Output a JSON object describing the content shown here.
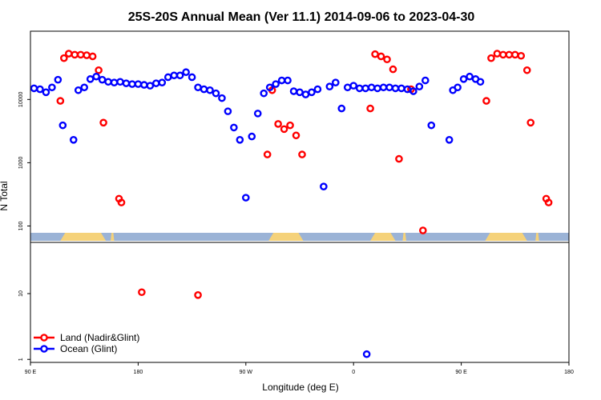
{
  "chart_data": {
    "type": "scatter",
    "title": "25S-20S Annual Mean (Ver 11.1)   2014-09-06 to 2023-04-30",
    "xlabel": "Longitude (deg E)",
    "ylabel": "N Total",
    "xlim": [
      90,
      540
    ],
    "x_ticks": [
      {
        "value": 90,
        "label": "90 E"
      },
      {
        "value": 180,
        "label": "180"
      },
      {
        "value": 270,
        "label": "90 W"
      },
      {
        "value": 360,
        "label": "0"
      },
      {
        "value": 450,
        "label": "90 E"
      },
      {
        "value": 540,
        "label": "180"
      }
    ],
    "y_scale": "log",
    "upper_ylim": [
      55,
      120000
    ],
    "lower_ylim": [
      0.9,
      60
    ],
    "upper_y_ticks": [
      {
        "value": 100,
        "label": "100"
      },
      {
        "value": 1000,
        "label": "1000"
      },
      {
        "value": 10000,
        "label": "10000"
      }
    ],
    "lower_y_ticks": [
      {
        "value": 1,
        "label": "1"
      },
      {
        "value": 10,
        "label": "10"
      }
    ],
    "land_mask": {
      "ocean_color": "#9bb3d6",
      "land_color": "#f5d27a",
      "land_segments": [
        [
          115,
          153
        ],
        [
          157,
          160
        ],
        [
          289,
          318
        ],
        [
          374,
          395
        ],
        [
          401,
          404
        ],
        [
          470,
          505
        ],
        [
          512,
          515
        ]
      ]
    },
    "legend_position": "bottom-left",
    "series": [
      {
        "name": "Land (Nadir&Glint)",
        "color": "#ff0000",
        "upper": [
          [
            115,
            9500
          ],
          [
            118,
            45000
          ],
          [
            122,
            53000
          ],
          [
            127,
            51000
          ],
          [
            132,
            51000
          ],
          [
            137,
            50000
          ],
          [
            142,
            48000
          ],
          [
            147,
            29000
          ],
          [
            151,
            4300
          ],
          [
            164,
            270
          ],
          [
            166,
            235
          ],
          [
            292,
            14000
          ],
          [
            297,
            4100
          ],
          [
            302,
            3400
          ],
          [
            307,
            3900
          ],
          [
            312,
            2700
          ],
          [
            317,
            1350
          ],
          [
            288,
            1350
          ],
          [
            374,
            7200
          ],
          [
            378,
            52000
          ],
          [
            383,
            48000
          ],
          [
            388,
            43000
          ],
          [
            393,
            30000
          ],
          [
            398,
            1150
          ],
          [
            408,
            14500
          ],
          [
            418,
            85
          ],
          [
            471,
            9500
          ],
          [
            475,
            45000
          ],
          [
            480,
            53000
          ],
          [
            485,
            51000
          ],
          [
            490,
            51000
          ],
          [
            495,
            51000
          ],
          [
            500,
            49000
          ],
          [
            505,
            29000
          ],
          [
            508,
            4300
          ],
          [
            521,
            270
          ],
          [
            523,
            235
          ]
        ],
        "lower": [
          [
            183,
            10.5
          ],
          [
            230,
            9.5
          ]
        ]
      },
      {
        "name": "Ocean (Glint)",
        "color": "#0000ff",
        "upper": [
          [
            93,
            15000
          ],
          [
            98,
            14500
          ],
          [
            103,
            13000
          ],
          [
            108,
            15500
          ],
          [
            113,
            20500
          ],
          [
            117,
            3900
          ],
          [
            126,
            2300
          ],
          [
            130,
            14000
          ],
          [
            135,
            15500
          ],
          [
            140,
            21000
          ],
          [
            145,
            23000
          ],
          [
            150,
            20500
          ],
          [
            155,
            19000
          ],
          [
            160,
            18500
          ],
          [
            165,
            19000
          ],
          [
            170,
            18000
          ],
          [
            175,
            17500
          ],
          [
            180,
            17500
          ],
          [
            185,
            17000
          ],
          [
            190,
            16500
          ],
          [
            195,
            18000
          ],
          [
            200,
            18500
          ],
          [
            205,
            22500
          ],
          [
            210,
            24000
          ],
          [
            215,
            24000
          ],
          [
            220,
            27000
          ],
          [
            225,
            22500
          ],
          [
            230,
            15500
          ],
          [
            235,
            14500
          ],
          [
            240,
            14000
          ],
          [
            245,
            12500
          ],
          [
            250,
            10500
          ],
          [
            255,
            6500
          ],
          [
            260,
            3600
          ],
          [
            265,
            2300
          ],
          [
            270,
            280
          ],
          [
            275,
            2600
          ],
          [
            280,
            6000
          ],
          [
            285,
            12500
          ],
          [
            290,
            15500
          ],
          [
            295,
            17500
          ],
          [
            300,
            20000
          ],
          [
            305,
            20000
          ],
          [
            310,
            13500
          ],
          [
            315,
            13000
          ],
          [
            320,
            12000
          ],
          [
            325,
            13000
          ],
          [
            330,
            14500
          ],
          [
            335,
            420
          ],
          [
            340,
            16000
          ],
          [
            345,
            18500
          ],
          [
            350,
            7200
          ],
          [
            355,
            15500
          ],
          [
            360,
            16500
          ],
          [
            365,
            15000
          ],
          [
            370,
            15000
          ],
          [
            375,
            15500
          ],
          [
            380,
            15000
          ],
          [
            385,
            15500
          ],
          [
            390,
            15500
          ],
          [
            395,
            15000
          ],
          [
            400,
            15000
          ],
          [
            405,
            14500
          ],
          [
            410,
            13500
          ],
          [
            415,
            16000
          ],
          [
            420,
            20000
          ],
          [
            425,
            3900
          ],
          [
            440,
            2300
          ],
          [
            443,
            14000
          ],
          [
            447,
            15500
          ],
          [
            452,
            21000
          ],
          [
            457,
            23000
          ],
          [
            462,
            21000
          ],
          [
            466,
            19000
          ]
        ],
        "lower": [
          [
            371,
            1.2
          ]
        ]
      }
    ]
  }
}
